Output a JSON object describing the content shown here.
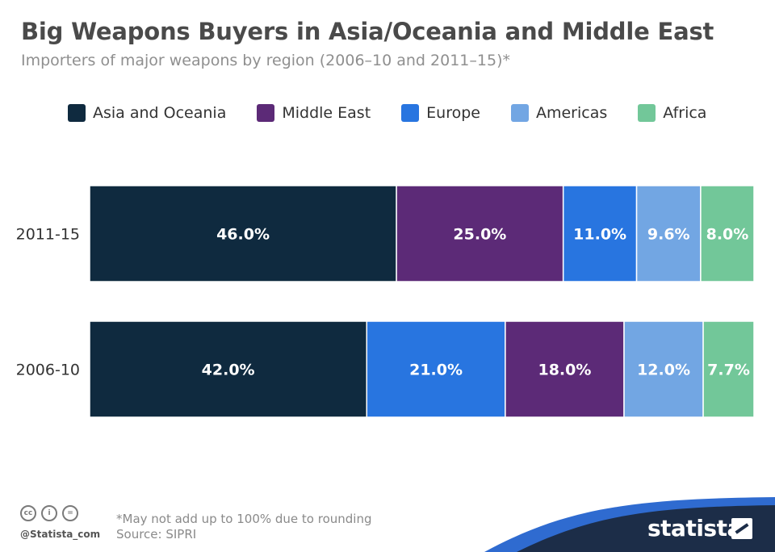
{
  "header": {
    "title": "Big Weapons Buyers in Asia/Oceania and Middle East",
    "subtitle": "Importers of major weapons by region (2006–10 and 2011–15)*"
  },
  "legend": [
    {
      "label": "Asia and Oceania",
      "color": "#0f2a3f"
    },
    {
      "label": "Middle East",
      "color": "#5c2a77"
    },
    {
      "label": "Europe",
      "color": "#2875e0"
    },
    {
      "label": "Americas",
      "color": "#72a6e3"
    },
    {
      "label": "Africa",
      "color": "#72c799"
    }
  ],
  "chart_data": {
    "type": "bar",
    "orientation": "horizontal",
    "stacked": true,
    "title": "Big Weapons Buyers in Asia/Oceania and Middle East",
    "subtitle": "Importers of major weapons by region (2006–10 and 2011–15)*",
    "legend_position": "top",
    "grid": false,
    "categories": [
      "2011-15",
      "2006-10"
    ],
    "bars": [
      {
        "category": "2011-15",
        "segments": [
          {
            "series": "Asia and Oceania",
            "value": 46.0,
            "label": "46.0%"
          },
          {
            "series": "Middle East",
            "value": 25.0,
            "label": "25.0%"
          },
          {
            "series": "Europe",
            "value": 11.0,
            "label": "11.0%"
          },
          {
            "series": "Americas",
            "value": 9.6,
            "label": "9.6%"
          },
          {
            "series": "Africa",
            "value": 8.0,
            "label": "8.0%"
          }
        ]
      },
      {
        "category": "2006-10",
        "segments": [
          {
            "series": "Asia and Oceania",
            "value": 42.0,
            "label": "42.0%"
          },
          {
            "series": "Europe",
            "value": 21.0,
            "label": "21.0%"
          },
          {
            "series": "Middle East",
            "value": 18.0,
            "label": "18.0%"
          },
          {
            "series": "Americas",
            "value": 12.0,
            "label": "12.0%"
          },
          {
            "series": "Africa",
            "value": 7.7,
            "label": "7.7%"
          }
        ]
      }
    ]
  },
  "footer": {
    "handle": "@Statista_com",
    "note": "*May not add up to 100% due to rounding",
    "source": "Source: SIPRI",
    "brand": "statista",
    "band_color": "#1c2d48",
    "accent_color": "#2f6bd0",
    "license_icons": [
      "cc-icon",
      "attribution-icon",
      "no-derivatives-icon"
    ]
  }
}
